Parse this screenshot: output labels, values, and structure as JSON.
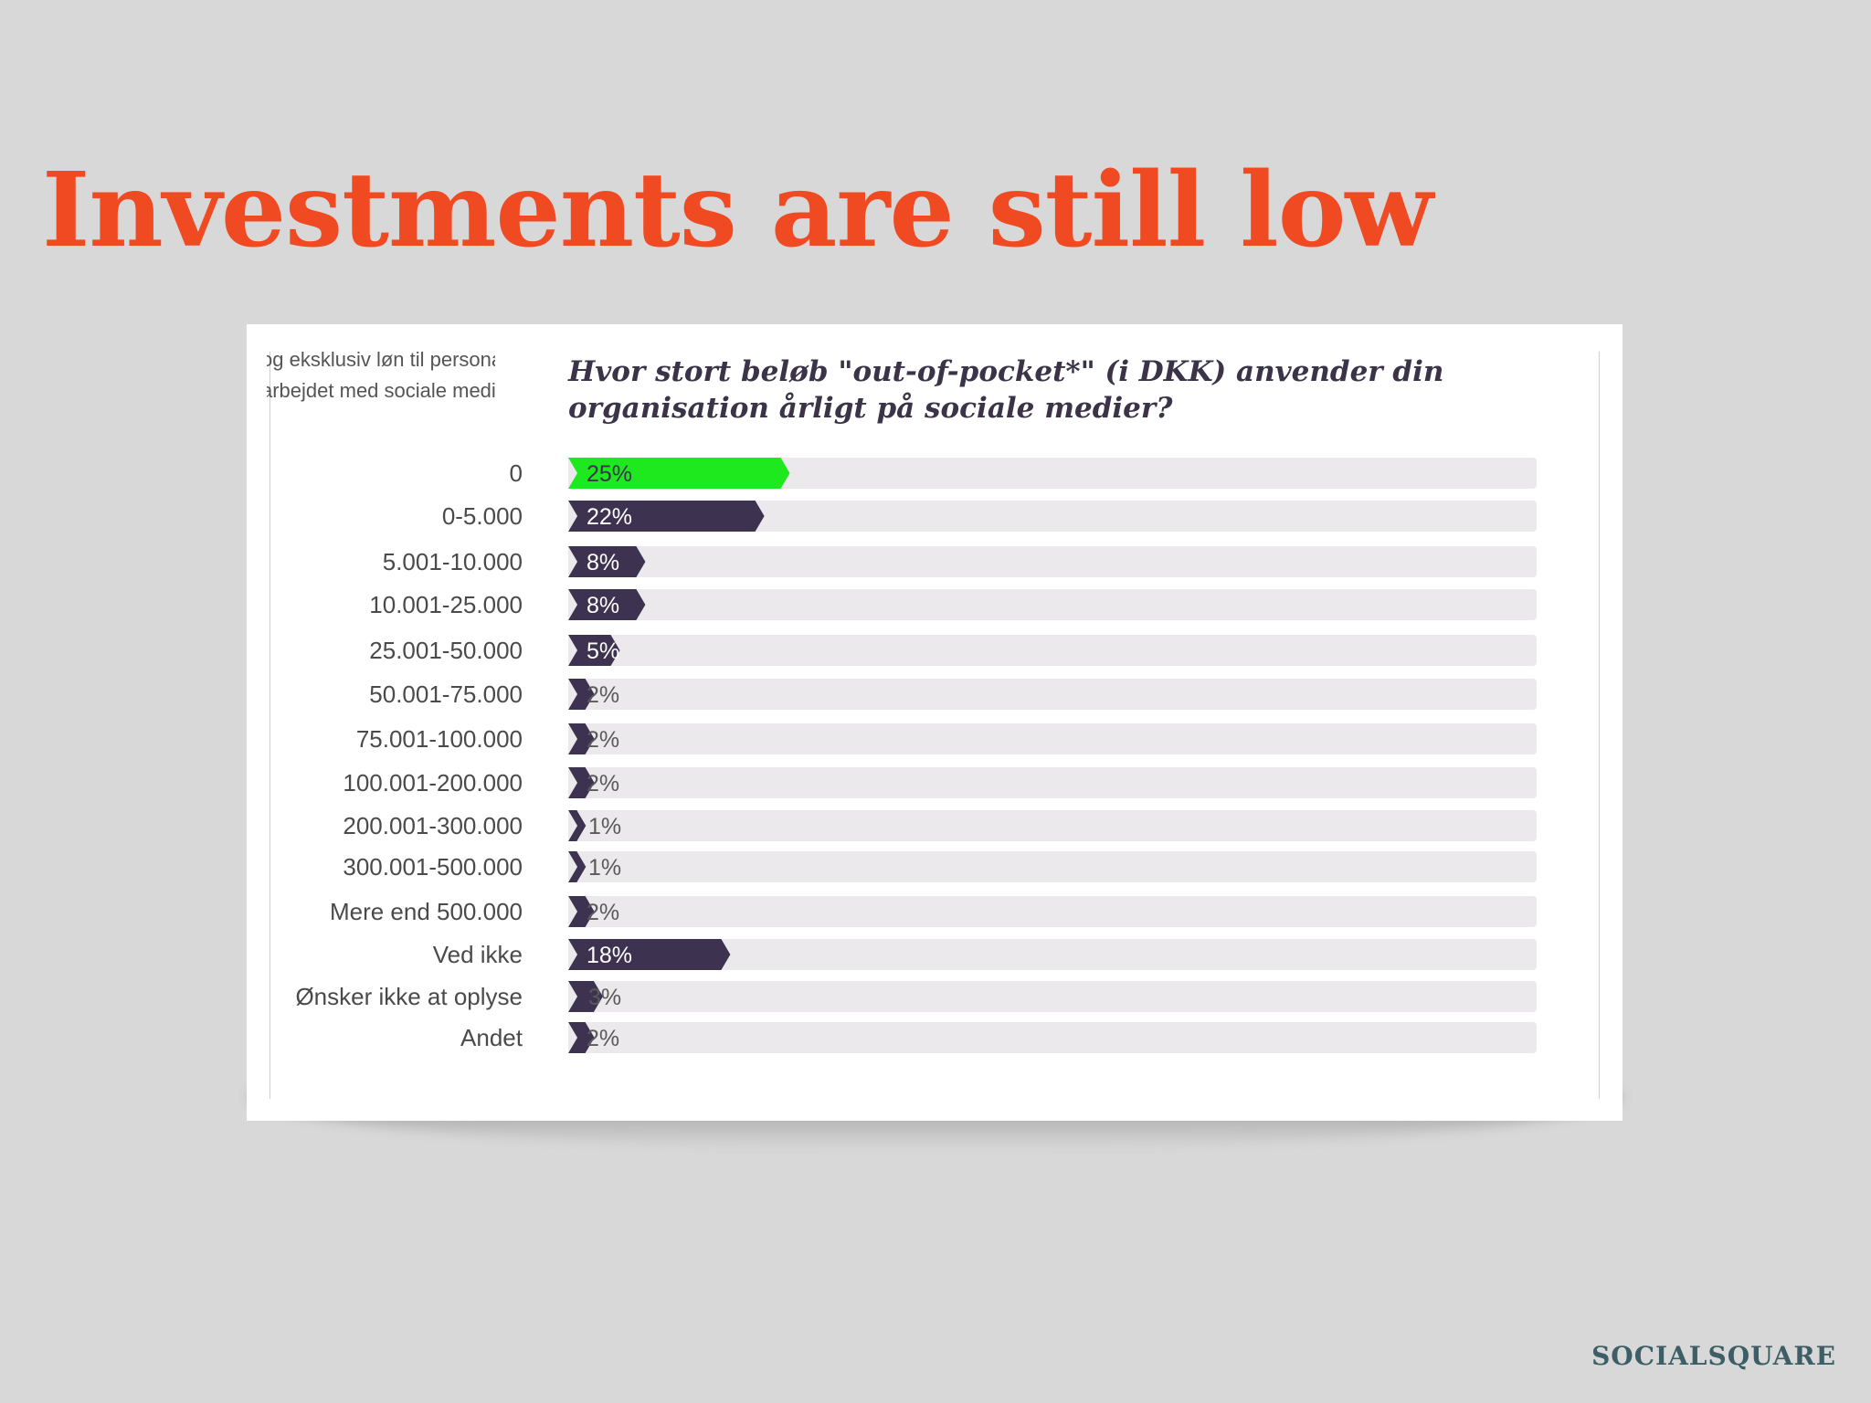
{
  "slide": {
    "title": "Investments are still low",
    "brand": "SOCIALSQUARE"
  },
  "colors": {
    "title": "#f04a23",
    "bar_default": "#3d3350",
    "bar_highlight": "#1ee81e",
    "track": "#ebe9ec"
  },
  "note_lines": [
    "og eksklusiv løn til personale",
    "arbejdet med sociale medier."
  ],
  "chart_data": {
    "type": "bar",
    "orientation": "horizontal",
    "title": "Hvor stort beløb \"out-of-pocket*\" (i DKK) anvender din organisation årligt på sociale medier?",
    "categories": [
      "0",
      "0-5.000",
      "5.001-10.000",
      "10.001-25.000",
      "25.001-50.000",
      "50.001-75.000",
      "75.001-100.000",
      "100.001-200.000",
      "200.001-300.000",
      "300.001-500.000",
      "Mere end 500.000",
      "Ved ikke",
      "Ønsker ikke at oplyse",
      "Andet"
    ],
    "values": [
      25,
      22,
      8,
      8,
      5,
      2,
      2,
      2,
      1,
      1,
      2,
      18,
      3,
      2
    ],
    "labels": [
      "25%",
      "22%",
      "8%",
      "8%",
      "5%",
      "2%",
      "2%",
      "2%",
      "1%",
      "1%",
      "2%",
      "18%",
      "3%",
      "2%"
    ],
    "highlight_index": 0,
    "xlim": [
      0,
      100
    ],
    "grid": false,
    "legend": "none"
  }
}
